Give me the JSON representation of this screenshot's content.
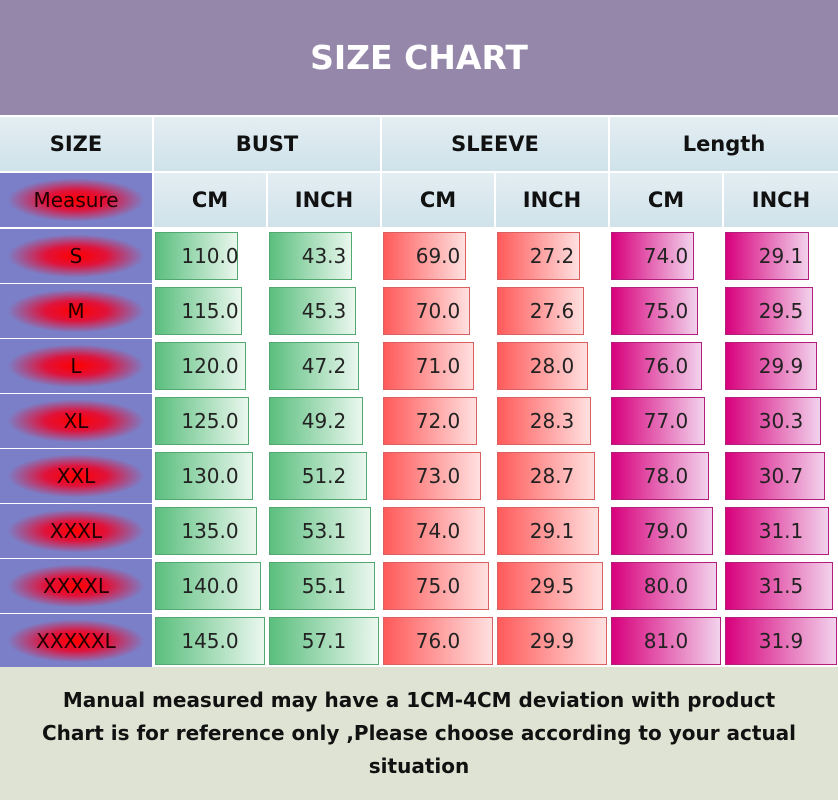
{
  "title": "SIZE CHART",
  "chart_data": {
    "type": "table",
    "title": "SIZE CHART",
    "group_headers": [
      "SIZE",
      "BUST",
      "SLEEVE",
      "Length"
    ],
    "sub_headers": [
      "Measure",
      "CM",
      "INCH",
      "CM",
      "INCH",
      "CM",
      "INCH"
    ],
    "rows": [
      {
        "size": "S",
        "values": [
          "110.0",
          "43.3",
          "69.0",
          "27.2",
          "74.0",
          "29.1"
        ]
      },
      {
        "size": "M",
        "values": [
          "115.0",
          "45.3",
          "70.0",
          "27.6",
          "75.0",
          "29.5"
        ]
      },
      {
        "size": "L",
        "values": [
          "120.0",
          "47.2",
          "71.0",
          "28.0",
          "76.0",
          "29.9"
        ]
      },
      {
        "size": "XL",
        "values": [
          "125.0",
          "49.2",
          "72.0",
          "28.3",
          "77.0",
          "30.3"
        ]
      },
      {
        "size": "XXL",
        "values": [
          "130.0",
          "51.2",
          "73.0",
          "28.7",
          "78.0",
          "30.7"
        ]
      },
      {
        "size": "XXXL",
        "values": [
          "135.0",
          "53.1",
          "74.0",
          "29.1",
          "79.0",
          "31.1"
        ]
      },
      {
        "size": "XXXXL",
        "values": [
          "140.0",
          "55.1",
          "75.0",
          "29.5",
          "80.0",
          "31.5"
        ]
      },
      {
        "size": "XXXXXL",
        "values": [
          "145.0",
          "57.1",
          "76.0",
          "29.9",
          "81.0",
          "31.9"
        ]
      }
    ],
    "bar_colors": [
      "#5bbf7e",
      "#5bbf7e",
      "#ff5a5a",
      "#ff5a5a",
      "#d8007c",
      "#d8007c"
    ]
  },
  "footer": {
    "line1": "Manual measured may have a 1CM-4CM deviation with product",
    "line2": "Chart is for reference only ,Please choose according to your actual",
    "line3": "situation"
  }
}
